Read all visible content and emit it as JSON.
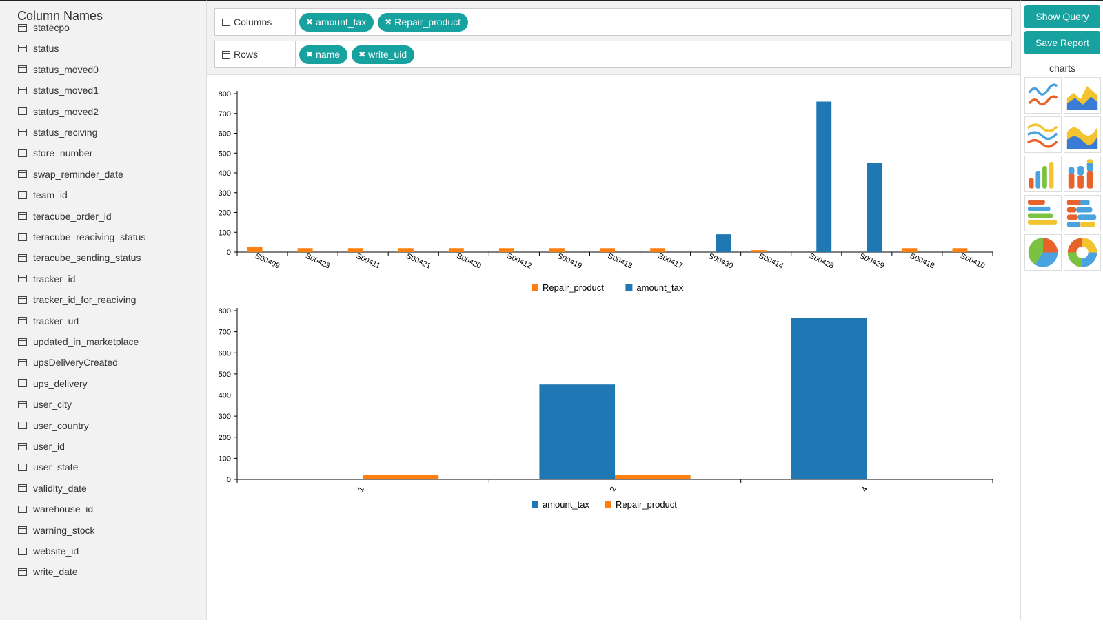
{
  "sidebar": {
    "title": "Column Names",
    "columns": [
      "statecpo",
      "status",
      "status_moved0",
      "status_moved1",
      "status_moved2",
      "status_reciving",
      "store_number",
      "swap_reminder_date",
      "team_id",
      "teracube_order_id",
      "teracube_reaciving_status",
      "teracube_sending_status",
      "tracker_id",
      "tracker_id_for_reaciving",
      "tracker_url",
      "updated_in_marketplace",
      "upsDeliveryCreated",
      "ups_delivery",
      "user_city",
      "user_country",
      "user_id",
      "user_state",
      "validity_date",
      "warehouse_id",
      "warning_stock",
      "website_id",
      "write_date"
    ]
  },
  "pivot": {
    "columns_label": "Columns",
    "rows_label": "Rows",
    "column_tags": [
      "amount_tax",
      "Repair_product"
    ],
    "row_tags": [
      "name",
      "write_uid"
    ]
  },
  "actions": {
    "show_query": "Show Query",
    "save_report": "Save Report",
    "charts_label": "charts"
  },
  "chart_icons": [
    "line-chart-icon",
    "area-chart-icon",
    "spline-chart-icon",
    "spline-area-chart-icon",
    "bar-chart-icon",
    "stacked-bar-chart-icon",
    "horizontal-bar-chart-icon",
    "stacked-horizontal-bar-chart-icon",
    "pie-chart-icon",
    "donut-chart-icon"
  ],
  "colors": {
    "accent": "#17a2a0",
    "blue": "#1f77b4",
    "orange": "#ff7f0e"
  },
  "chart_data": [
    {
      "type": "bar",
      "categories": [
        "S00409",
        "S00423",
        "S00411",
        "S00421",
        "S00420",
        "S00412",
        "S00419",
        "S00413",
        "S00417",
        "S00430",
        "S00414",
        "S00428",
        "S00429",
        "S00418",
        "S00410"
      ],
      "series": [
        {
          "name": "Repair_product",
          "values": [
            25,
            20,
            20,
            20,
            20,
            20,
            20,
            20,
            20,
            0,
            10,
            0,
            0,
            20,
            20
          ]
        },
        {
          "name": "amount_tax",
          "values": [
            0,
            0,
            0,
            0,
            0,
            0,
            0,
            0,
            0,
            90,
            0,
            760,
            450,
            0,
            0
          ]
        }
      ],
      "ylim": [
        0,
        800
      ],
      "yticks": [
        0,
        100,
        200,
        300,
        400,
        500,
        600,
        700,
        800
      ],
      "legend": "bottom"
    },
    {
      "type": "bar",
      "categories": [
        "1",
        "2",
        "4"
      ],
      "series": [
        {
          "name": "amount_tax",
          "values": [
            0,
            450,
            765
          ]
        },
        {
          "name": "Repair_product",
          "values": [
            20,
            20,
            0
          ]
        }
      ],
      "ylim": [
        0,
        800
      ],
      "yticks": [
        0,
        100,
        200,
        300,
        400,
        500,
        600,
        700,
        800
      ],
      "legend": "bottom"
    }
  ]
}
